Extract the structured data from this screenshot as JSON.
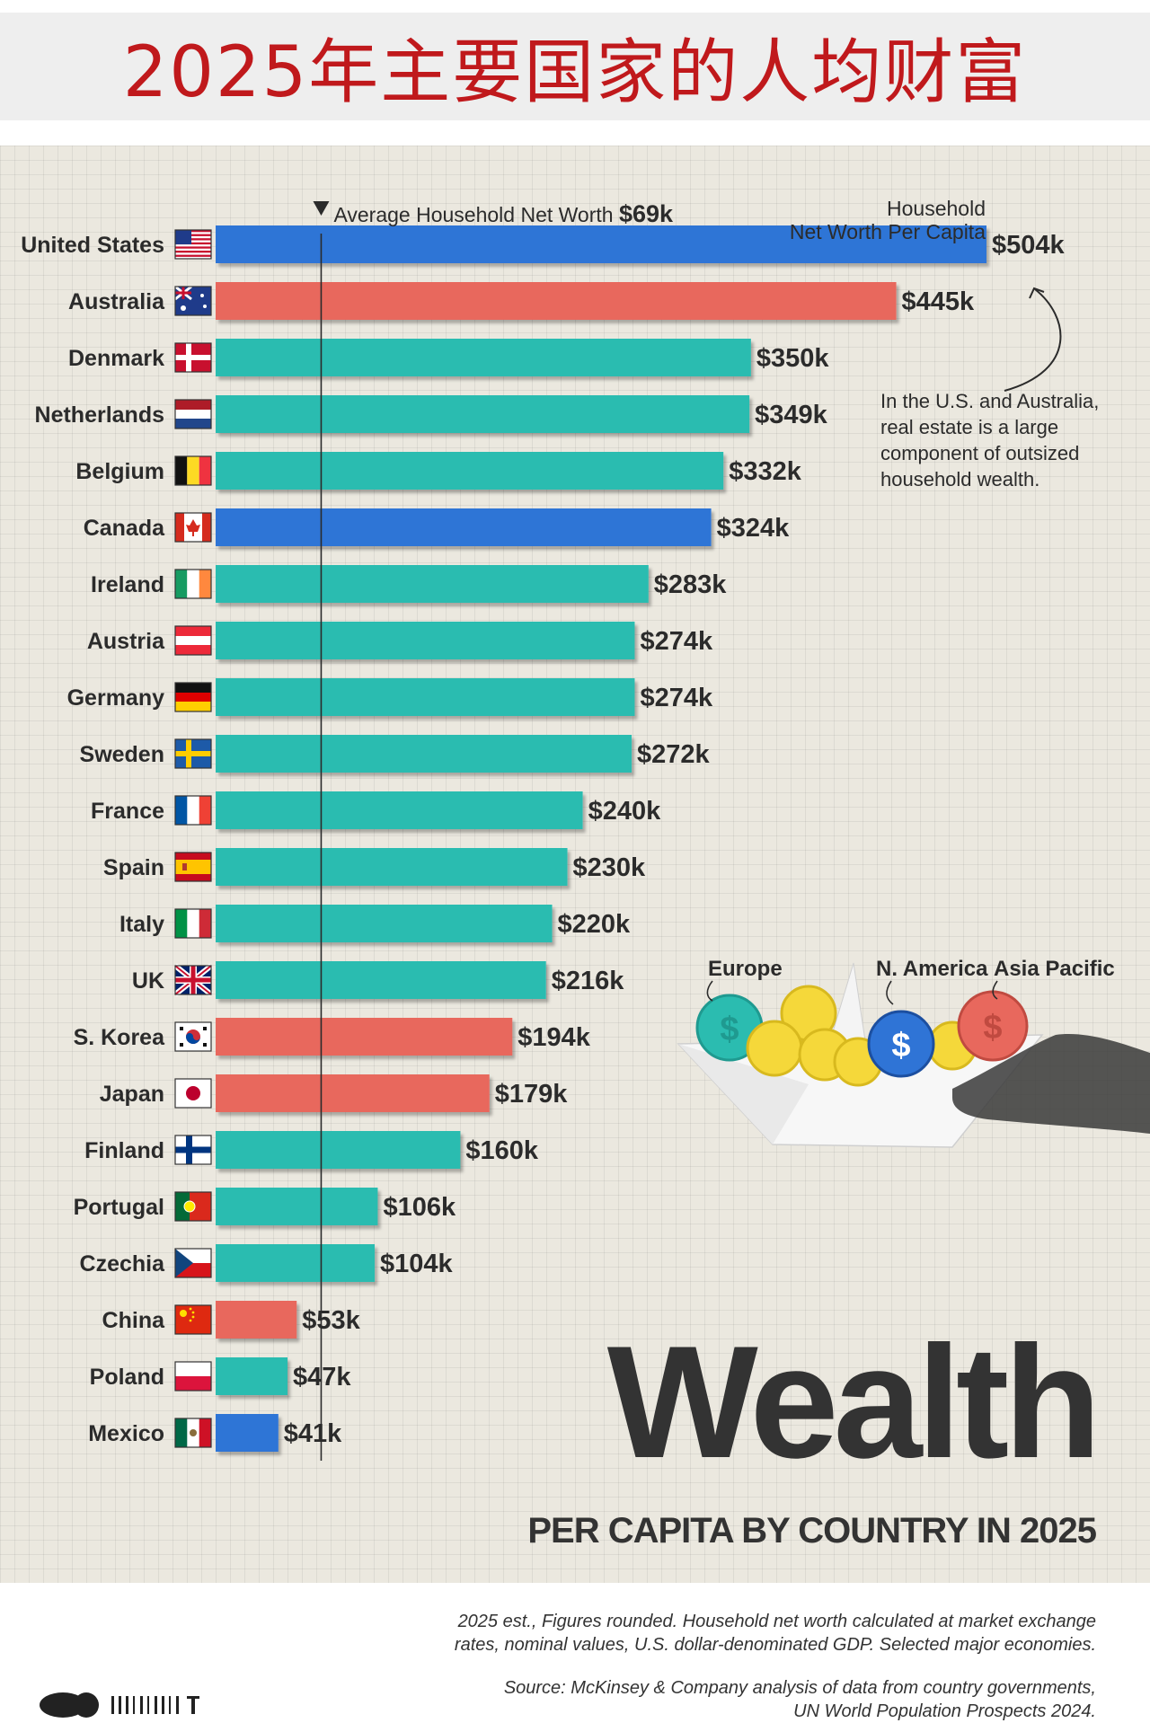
{
  "banner": {
    "title": "2025年主要国家的人均财富"
  },
  "chart_data": {
    "type": "bar",
    "orientation": "horizontal",
    "title": "Wealth",
    "subtitle": "PER CAPITA BY COUNTRY IN 2025",
    "value_axis_title_line1": "Household",
    "value_axis_title_line2": "Net Worth Per Capita",
    "unit_prefix": "$",
    "unit_suffix": "k",
    "xlim": [
      0,
      504
    ],
    "reference_line": {
      "label": "Average Household Net Worth",
      "value": 69,
      "value_label": "$69k"
    },
    "categories": [
      "United States",
      "Australia",
      "Denmark",
      "Netherlands",
      "Belgium",
      "Canada",
      "Ireland",
      "Austria",
      "Germany",
      "Sweden",
      "France",
      "Spain",
      "Italy",
      "UK",
      "S. Korea",
      "Japan",
      "Finland",
      "Portugal",
      "Czechia",
      "China",
      "Poland",
      "Mexico"
    ],
    "values": [
      504,
      445,
      350,
      349,
      332,
      324,
      283,
      274,
      274,
      272,
      240,
      230,
      220,
      216,
      194,
      179,
      160,
      106,
      104,
      53,
      47,
      41
    ],
    "value_labels": [
      "$504k",
      "$445k",
      "$350k",
      "$349k",
      "$332k",
      "$324k",
      "$283k",
      "$274k",
      "$274k",
      "$272k",
      "$240k",
      "$230k",
      "$220k",
      "$216k",
      "$194k",
      "$179k",
      "$160k",
      "$106k",
      "$104k",
      "$53k",
      "$47k",
      "$41k"
    ],
    "regions": [
      "N. America",
      "Asia Pacific",
      "Europe",
      "Europe",
      "Europe",
      "N. America",
      "Europe",
      "Europe",
      "Europe",
      "Europe",
      "Europe",
      "Europe",
      "Europe",
      "Europe",
      "Asia Pacific",
      "Asia Pacific",
      "Europe",
      "Europe",
      "Europe",
      "Asia Pacific",
      "Europe",
      "N. America"
    ],
    "region_legend": [
      {
        "name": "Europe",
        "color": "#2bbcb0"
      },
      {
        "name": "N. America",
        "color": "#2f74d6"
      },
      {
        "name": "Asia Pacific",
        "color": "#e8685d"
      }
    ],
    "annotation": {
      "lines": [
        "In the U.S. and Australia,",
        "real estate is a large",
        "component of outsized",
        "household wealth."
      ]
    },
    "note_lines": [
      "2025 est., Figures rounded. Household net worth calculated at market exchange",
      "rates, nominal values, U.S. dollar-denominated GDP. Selected major economies."
    ],
    "source_lines": [
      "Source: McKinsey & Company analysis of data from country governments,",
      "UN World Population Prospects 2024."
    ]
  },
  "colors": {
    "europe": "#2bbcb0",
    "north_america": "#2f74d6",
    "asia_pacific": "#e8685d",
    "banner_title": "#c0191c"
  },
  "flags": [
    {
      "country": "United States",
      "icon": "us-flag-icon"
    },
    {
      "country": "Australia",
      "icon": "australia-flag-icon"
    },
    {
      "country": "Denmark",
      "icon": "denmark-flag-icon"
    },
    {
      "country": "Netherlands",
      "icon": "netherlands-flag-icon"
    },
    {
      "country": "Belgium",
      "icon": "belgium-flag-icon"
    },
    {
      "country": "Canada",
      "icon": "canada-flag-icon"
    },
    {
      "country": "Ireland",
      "icon": "ireland-flag-icon"
    },
    {
      "country": "Austria",
      "icon": "austria-flag-icon"
    },
    {
      "country": "Germany",
      "icon": "germany-flag-icon"
    },
    {
      "country": "Sweden",
      "icon": "sweden-flag-icon"
    },
    {
      "country": "France",
      "icon": "france-flag-icon"
    },
    {
      "country": "Spain",
      "icon": "spain-flag-icon"
    },
    {
      "country": "Italy",
      "icon": "italy-flag-icon"
    },
    {
      "country": "UK",
      "icon": "uk-flag-icon"
    },
    {
      "country": "S. Korea",
      "icon": "south-korea-flag-icon"
    },
    {
      "country": "Japan",
      "icon": "japan-flag-icon"
    },
    {
      "country": "Finland",
      "icon": "finland-flag-icon"
    },
    {
      "country": "Portugal",
      "icon": "portugal-flag-icon"
    },
    {
      "country": "Czechia",
      "icon": "czechia-flag-icon"
    },
    {
      "country": "China",
      "icon": "china-flag-icon"
    },
    {
      "country": "Poland",
      "icon": "poland-flag-icon"
    },
    {
      "country": "Mexico",
      "icon": "mexico-flag-icon"
    }
  ],
  "illustration": {
    "icon": "paper-boat-with-coins-icon"
  },
  "logo": {
    "icon": "publisher-logo-icon"
  }
}
